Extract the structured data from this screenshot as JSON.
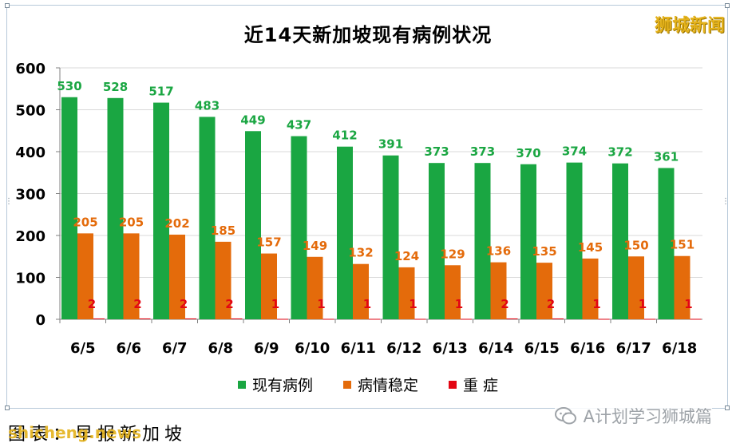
{
  "brand": "狮城新闻",
  "caption": "图表：早报新加坡",
  "watermark": "shicheng.news",
  "wechat_account": "A计划学习狮城篇",
  "colors": {
    "current_cases": "#1aa642",
    "stable": "#e46b0b",
    "critical": "#e30613",
    "label_green": "#1aa642",
    "label_orange": "#e46b0b",
    "label_red": "#e30613"
  },
  "chart_data": {
    "type": "bar",
    "title": "近14天新加坡现有病例状况",
    "categories": [
      "6/5",
      "6/6",
      "6/7",
      "6/8",
      "6/9",
      "6/10",
      "6/11",
      "6/12",
      "6/13",
      "6/14",
      "6/15",
      "6/16",
      "6/17",
      "6/18"
    ],
    "series": [
      {
        "name": "现有病例",
        "values": [
          530,
          528,
          517,
          483,
          449,
          437,
          412,
          391,
          373,
          373,
          370,
          374,
          372,
          361
        ]
      },
      {
        "name": "病情稳定",
        "values": [
          205,
          205,
          202,
          185,
          157,
          149,
          132,
          124,
          129,
          136,
          135,
          145,
          150,
          151
        ]
      },
      {
        "name": "重 症",
        "values": [
          2,
          2,
          2,
          2,
          1,
          1,
          1,
          1,
          1,
          2,
          2,
          1,
          1,
          1
        ]
      }
    ],
    "ylim": [
      0,
      600
    ],
    "yticks": [
      0,
      100,
      200,
      300,
      400,
      500,
      600
    ],
    "grid": true,
    "legend": "bottom"
  }
}
